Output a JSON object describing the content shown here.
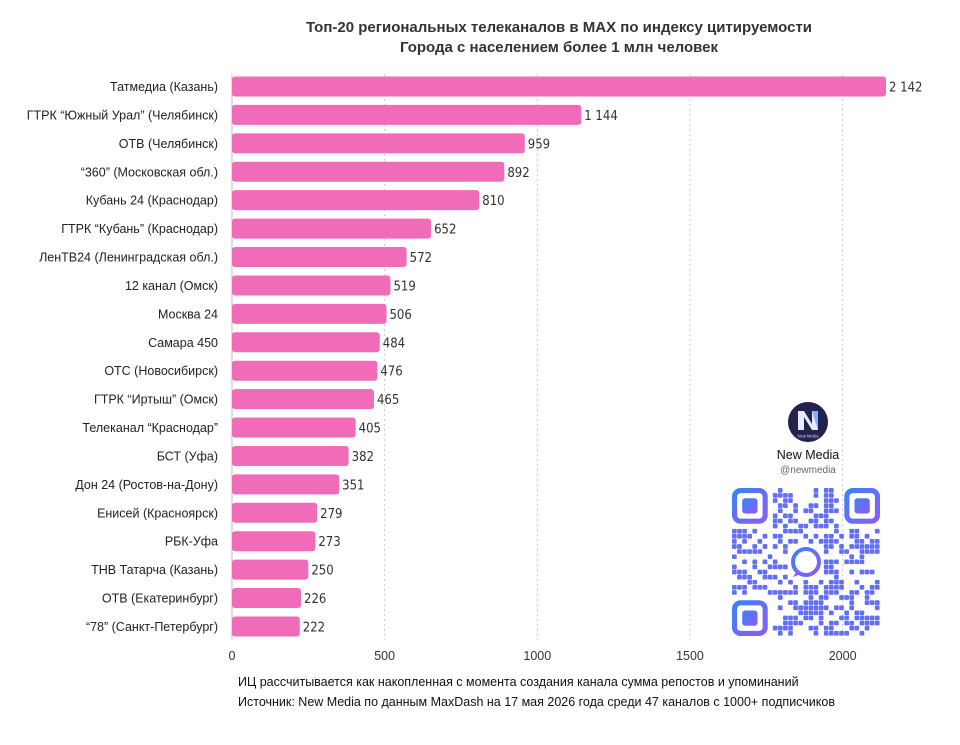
{
  "chart_data": {
    "type": "bar",
    "orientation": "horizontal",
    "title": "Топ-20 региональных телеканалов в MAX по индексу цитируемости",
    "subtitle": "Города с населением более 1 млн человек",
    "categories": [
      "Татмедиа (Казань)",
      "ГТРК “Южный Урал” (Челябинск)",
      "ОТВ (Челябинск)",
      "“360” (Московская обл.)",
      "Кубань 24 (Краснодар)",
      "ГТРК “Кубань” (Краснодар)",
      "ЛенТВ24 (Ленинградская обл.)",
      "12 канал (Омск)",
      "Москва 24",
      "Самара 450",
      "ОТС (Новосибирск)",
      "ГТРК “Иртыш” (Омск)",
      "Телеканал “Краснодар”",
      "БСТ (Уфа)",
      "Дон 24 (Ростов-на-Дону)",
      "Енисей (Красноярск)",
      "РБК-Уфа",
      "ТНВ Татарча (Казань)",
      "ОТВ (Екатеринбург)",
      "“78” (Санкт-Петербург)"
    ],
    "values": [
      2142,
      1144,
      959,
      892,
      810,
      652,
      572,
      519,
      506,
      484,
      476,
      465,
      405,
      382,
      351,
      279,
      273,
      250,
      226,
      222
    ],
    "value_labels": [
      "2 142",
      "1 144",
      "959",
      "892",
      "810",
      "652",
      "572",
      "519",
      "506",
      "484",
      "476",
      "465",
      "405",
      "382",
      "351",
      "279",
      "273",
      "250",
      "226",
      "222"
    ],
    "xlim": [
      0,
      2142
    ],
    "xticks": [
      0,
      500,
      1000,
      1500,
      2000
    ],
    "xlabel": "",
    "ylabel": "",
    "grid": "vertical dashed",
    "bar_color": "#f06bb8",
    "legend": "none"
  },
  "footnote": "ИЦ рассчитывается как накопленная с момента создания канала сумма репостов и упоминаний",
  "source": "Источник: New Media по данным MaxDash на 17 мая 2026 года среди 47 каналов с 1000+ подписчиков",
  "promo": {
    "logo_icon": "new-media-logo",
    "logo_text": "New Media",
    "name": "New Media",
    "handle": "@newmedia",
    "qr_icon": "qr-code",
    "qr_colors": [
      "#3b82f6",
      "#8b5cf6"
    ]
  }
}
